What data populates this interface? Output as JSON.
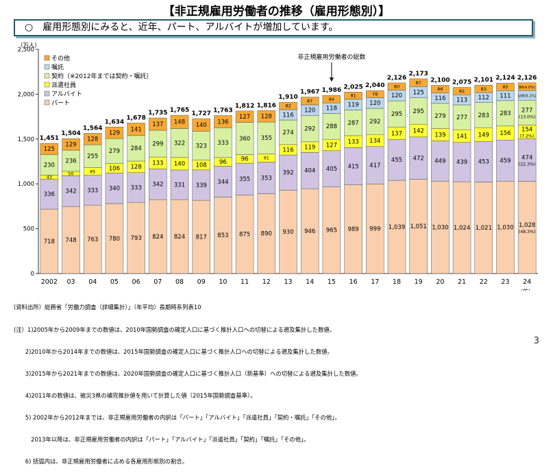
{
  "title": "【非正規雇用労働者の推移（雇用形態別）】",
  "subtitle": "○　雇用形態別にみると、近年、パート、アルバイトが増加しています。",
  "page_number": "3",
  "notes": [
    "(資料出所）総務省「労働力調査（詳細集計）」（年平均）長期時系列表10",
    "(注）1)2005年から2009年までの数値は、2010年国勢調査の確定人口に基づく推計人口への切替による遡及集計した数値。",
    "　　2)2010年から2014年までの数値は、2015年国勢調査の確定人口に基づく推計人口への切替による遡及集計した数値。",
    "　　3)2015年から2021年までの数値は、2020年国勢調査の確定人口に基づく推計人口（新基準）への切替による遡及集計した数値。",
    "　　4)2011年の数値は、被災3県の補完推計値を用いて計算した値（2015年国勢調査基準）。",
    "　　5) 2002年から2012年までは、非正規雇用労働者の内訳は「パート」「アルバイト」「派遣社員」「契約・嘱託」「その他」。",
    "　　　2013年以降は、非正規雇用労働者の内訳は「パート」「アルバイト」「派遣社員」「契約」「嘱託」「その他」。",
    "　　6) 括弧内は、非正規雇用労働者に占める各雇用形態別の割合。"
  ],
  "chart_data": {
    "type": "bar",
    "stacked": true,
    "y_unit_label": "（万人）",
    "x_unit_label": "（年）",
    "ylim": [
      0,
      2500
    ],
    "yticks": [
      "0",
      "500",
      "1,000",
      "1,500",
      "2,000",
      "2,500"
    ],
    "categories": [
      "2002",
      "03",
      "04",
      "05",
      "06",
      "07",
      "08",
      "09",
      "10",
      "11",
      "12",
      "13",
      "14",
      "15",
      "16",
      "17",
      "18",
      "19",
      "20",
      "21",
      "22",
      "23",
      "24"
    ],
    "annotation": "非正規雇用労働者の総数",
    "annotation_category": "15",
    "totals": [
      "1,451",
      "1,504",
      "1,564",
      "1,634",
      "1,678",
      "1,735",
      "1,765",
      "1,727",
      "1,763",
      "1,812",
      "1,816",
      "1,910",
      "1,967",
      "1,986",
      "2,025",
      "2,040",
      "2,126",
      "2,173",
      "2,100",
      "2,075",
      "2,101",
      "2,124",
      "2,126"
    ],
    "series": [
      {
        "name": "パート",
        "color": "#f9cfae",
        "values": [
          718,
          748,
          763,
          780,
          793,
          824,
          824,
          817,
          853,
          875,
          890,
          930,
          946,
          965,
          989,
          999,
          1039,
          1051,
          1030,
          1024,
          1021,
          1030,
          1028
        ],
        "labels": [
          "718",
          "748",
          "763",
          "780",
          "793",
          "824",
          "824",
          "817",
          "853",
          "875",
          "890",
          "930",
          "946",
          "965",
          "989",
          "999",
          "1,039",
          "1,051",
          "1,030",
          "1,024",
          "1,021",
          "1,030",
          "1,028"
        ],
        "last_share": "(48.3%)"
      },
      {
        "name": "アルバイト",
        "color": "#d0c4e2",
        "values": [
          336,
          342,
          333,
          340,
          333,
          342,
          331,
          339,
          344,
          355,
          353,
          392,
          404,
          405,
          415,
          417,
          455,
          472,
          449,
          439,
          453,
          459,
          474
        ],
        "labels": [
          "336",
          "342",
          "333",
          "340",
          "333",
          "342",
          "331",
          "339",
          "344",
          "355",
          "353",
          "392",
          "404",
          "405",
          "415",
          "417",
          "455",
          "472",
          "449",
          "439",
          "453",
          "459",
          "474"
        ],
        "last_share": "(22.3%)"
      },
      {
        "name": "派遣社員",
        "color": "#ffff33",
        "values": [
          43,
          50,
          85,
          106,
          128,
          133,
          140,
          108,
          96,
          96,
          91,
          116,
          119,
          127,
          133,
          134,
          137,
          142,
          139,
          141,
          149,
          156,
          154
        ],
        "labels": [
          "43",
          "50",
          "85",
          "106",
          "128",
          "133",
          "140",
          "108",
          "96",
          "96",
          "91",
          "116",
          "119",
          "127",
          "133",
          "134",
          "137",
          "142",
          "139",
          "141",
          "149",
          "156",
          "154"
        ],
        "last_share": "(7.2%)"
      },
      {
        "name": "契約（※2012年までは契約・嘱託）",
        "color": "#d7f0a2",
        "values": [
          230,
          236,
          255,
          279,
          284,
          299,
          322,
          323,
          333,
          360,
          355,
          274,
          292,
          288,
          287,
          292,
          295,
          295,
          279,
          277,
          283,
          283,
          277
        ],
        "labels": [
          "230",
          "236",
          "255",
          "279",
          "284",
          "299",
          "322",
          "323",
          "333",
          "360",
          "355",
          "274",
          "292",
          "288",
          "287",
          "292",
          "295",
          "295",
          "279",
          "277",
          "283",
          "283",
          "277"
        ],
        "last_share": "(13.0%)"
      },
      {
        "name": "嘱託",
        "color": "#bcd7ee",
        "values": [
          0,
          0,
          0,
          0,
          0,
          0,
          0,
          0,
          0,
          0,
          0,
          116,
          120,
          118,
          119,
          120,
          120,
          125,
          116,
          113,
          112,
          111,
          108
        ],
        "labels": [
          "",
          "",
          "",
          "",
          "",
          "",
          "",
          "",
          "",
          "",
          "",
          "116",
          "120",
          "118",
          "119",
          "120",
          "120",
          "125",
          "116",
          "113",
          "112",
          "111",
          "108"
        ],
        "last_share": "(5.1%)"
      },
      {
        "name": "その他",
        "color": "#f6a935",
        "values": [
          125,
          129,
          128,
          129,
          141,
          137,
          148,
          140,
          136,
          127,
          128,
          82,
          87,
          84,
          81,
          78,
          80,
          87,
          86,
          82,
          83,
          85,
          86
        ],
        "labels": [
          "125",
          "129",
          "128",
          "129",
          "141",
          "137",
          "148",
          "140",
          "136",
          "127",
          "128",
          "82",
          "87",
          "84",
          "81",
          "78",
          "80",
          "87",
          "86",
          "82",
          "83",
          "85",
          "86"
        ],
        "last_share": "(4.0%)"
      }
    ],
    "legend_placement": "top-left"
  }
}
